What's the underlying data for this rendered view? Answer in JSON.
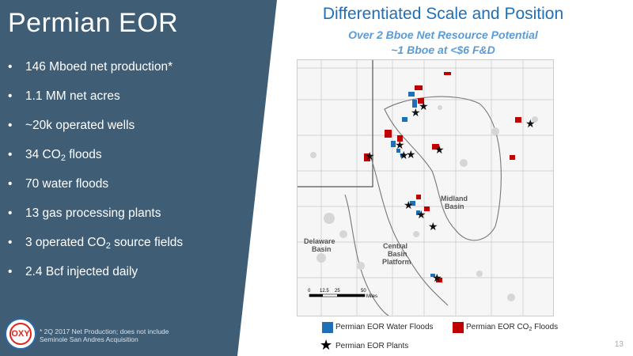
{
  "left": {
    "title": "Permian EOR",
    "bullets": [
      {
        "main": "146 Mboed net production*",
        "sub": "",
        "post": ""
      },
      {
        "main": "1.1 MM net acres",
        "sub": "",
        "post": ""
      },
      {
        "main": "~20k operated wells",
        "sub": "",
        "post": ""
      },
      {
        "main": "34 CO",
        "sub": "2",
        "post": " floods"
      },
      {
        "main": "70 water floods",
        "sub": "",
        "post": ""
      },
      {
        "main": "13 gas processing plants",
        "sub": "",
        "post": ""
      },
      {
        "main": "3 operated CO",
        "sub": "2",
        "post": " source fields"
      },
      {
        "main": "2.4 Bcf injected daily",
        "sub": "",
        "post": ""
      }
    ],
    "footnote_line1": "* 2Q 2017 Net Production; does not include",
    "footnote_line2": "Seminole San Andres Acquisition",
    "logo_text": "OXY"
  },
  "right": {
    "title": "Differentiated Scale and Position",
    "subtitle1": "Over 2 Bboe Net Resource Potential",
    "subtitle2": "~1 Bboe at <$6 F&D"
  },
  "map": {
    "labels": {
      "midland": "Midland\nBasin",
      "delaware": "Delaware\nBasin",
      "central": "Central\nBasin\nPlatform"
    },
    "scale_labels": [
      "0",
      "12.5",
      "25",
      "50"
    ],
    "scale_unit": "Miles"
  },
  "legend": {
    "water": "Permian EOR Water Floods",
    "co2_main": "Permian EOR CO",
    "co2_sub": "2",
    "co2_post": " Floods",
    "plants": "Permian EOR Plants"
  },
  "colors": {
    "panel": "#3f5d75",
    "water": "#1f6fb8",
    "co2": "#c00000",
    "title": "#1f6fb8"
  },
  "page_number": "13"
}
